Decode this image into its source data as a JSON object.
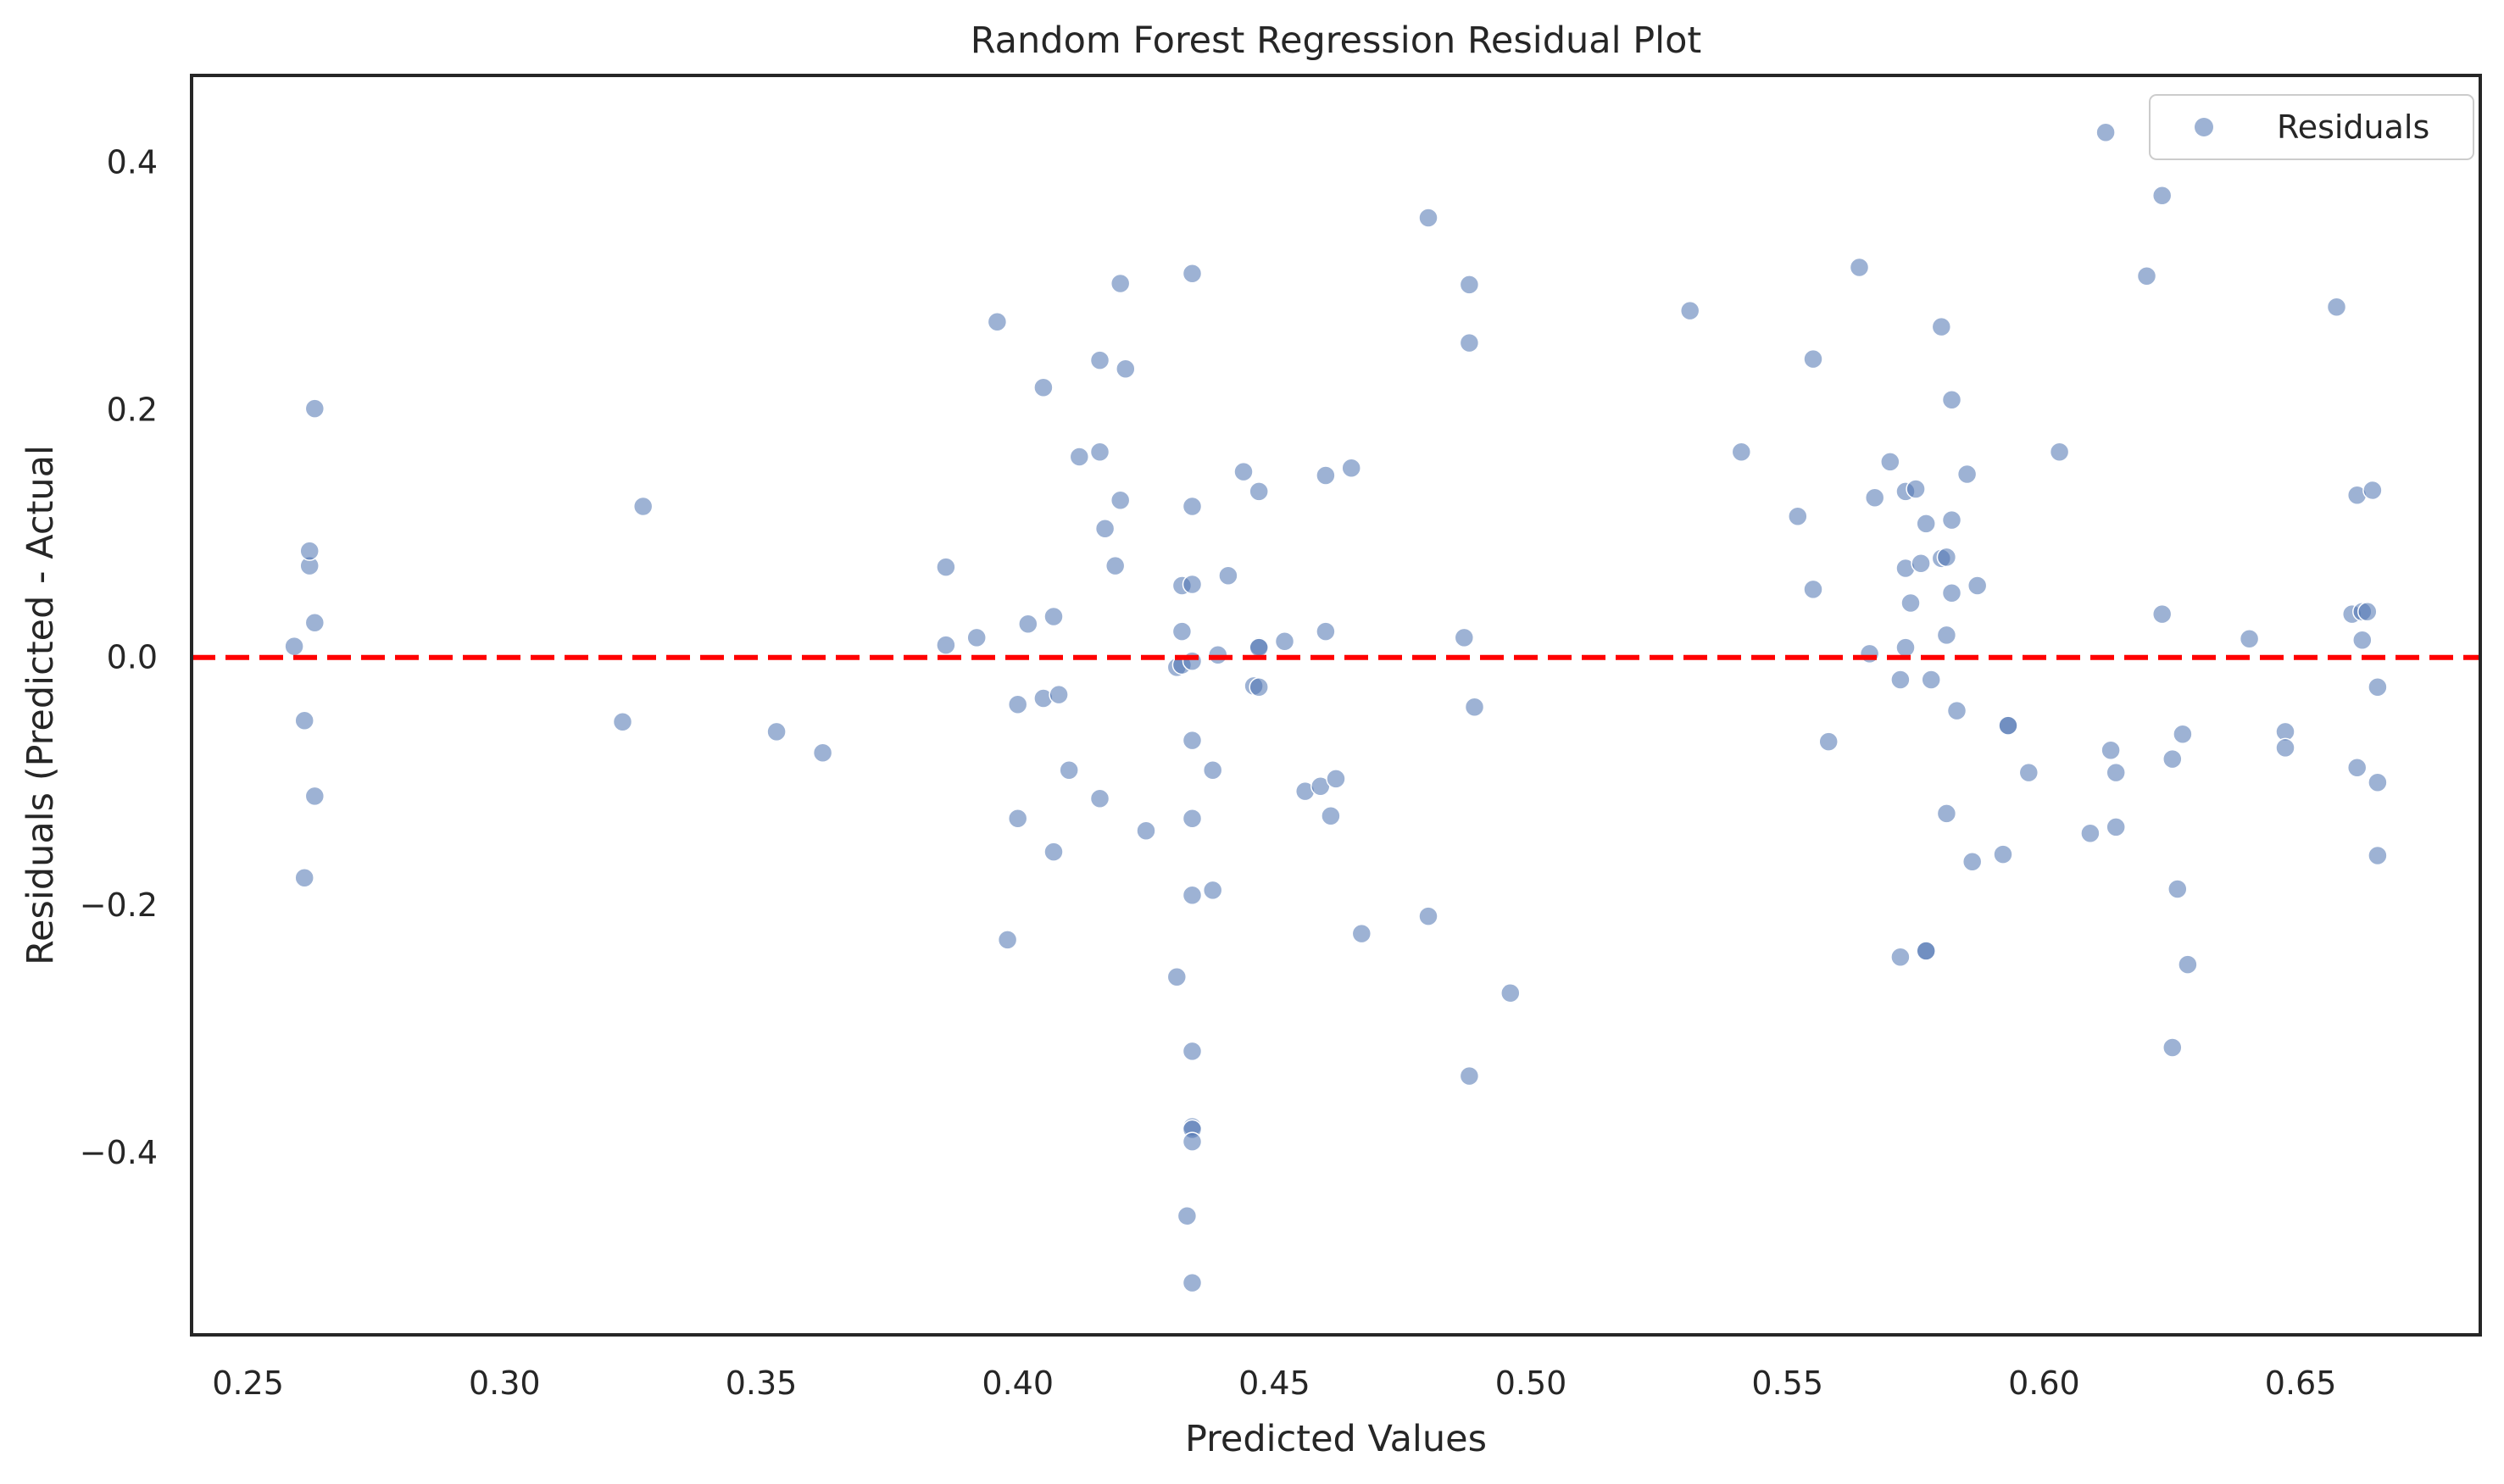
{
  "chart_data": {
    "type": "scatter",
    "title": "Random Forest Regression Residual Plot",
    "xlabel": "Predicted Values",
    "ylabel": "Residuals (Predicted - Actual",
    "xlim": [
      0.239,
      0.685
    ],
    "ylim": [
      -0.547,
      0.47
    ],
    "grid": false,
    "legend_position": "top-right",
    "reference_line": {
      "y": 0.0,
      "color": "#ff0000",
      "style": "dashed"
    },
    "point_color": "#4c72b0",
    "x_ticks": [
      {
        "value": 0.25,
        "label": "0.25"
      },
      {
        "value": 0.3,
        "label": "0.30"
      },
      {
        "value": 0.35,
        "label": "0.35"
      },
      {
        "value": 0.4,
        "label": "0.40"
      },
      {
        "value": 0.45,
        "label": "0.45"
      },
      {
        "value": 0.5,
        "label": "0.50"
      },
      {
        "value": 0.55,
        "label": "0.55"
      },
      {
        "value": 0.6,
        "label": "0.60"
      },
      {
        "value": 0.65,
        "label": "0.65"
      }
    ],
    "y_ticks": [
      {
        "value": 0.4,
        "label": "0.4"
      },
      {
        "value": 0.2,
        "label": "0.2"
      },
      {
        "value": 0.0,
        "label": "0.0"
      },
      {
        "value": -0.2,
        "label": "−0.2"
      },
      {
        "value": -0.4,
        "label": "−0.4"
      }
    ],
    "series": [
      {
        "name": "Residuals",
        "points": [
          [
            0.259,
            0.009
          ],
          [
            0.261,
            -0.051
          ],
          [
            0.262,
            0.074
          ],
          [
            0.262,
            0.086
          ],
          [
            0.263,
            0.201
          ],
          [
            0.263,
            0.028
          ],
          [
            0.263,
            -0.112
          ],
          [
            0.261,
            -0.178
          ],
          [
            0.323,
            -0.052
          ],
          [
            0.327,
            0.122
          ],
          [
            0.353,
            -0.06
          ],
          [
            0.362,
            -0.077
          ],
          [
            0.386,
            0.073
          ],
          [
            0.386,
            0.01
          ],
          [
            0.392,
            0.016
          ],
          [
            0.396,
            0.271
          ],
          [
            0.398,
            -0.228
          ],
          [
            0.4,
            -0.038
          ],
          [
            0.4,
            -0.13
          ],
          [
            0.402,
            0.027
          ],
          [
            0.405,
            0.218
          ],
          [
            0.405,
            -0.033
          ],
          [
            0.407,
            0.033
          ],
          [
            0.407,
            -0.157
          ],
          [
            0.408,
            -0.03
          ],
          [
            0.41,
            -0.091
          ],
          [
            0.412,
            0.162
          ],
          [
            0.416,
            0.24
          ],
          [
            0.416,
            0.166
          ],
          [
            0.417,
            0.104
          ],
          [
            0.416,
            -0.114
          ],
          [
            0.419,
            0.074
          ],
          [
            0.42,
            0.302
          ],
          [
            0.42,
            0.127
          ],
          [
            0.421,
            0.233
          ],
          [
            0.425,
            -0.14
          ],
          [
            0.431,
            -0.008
          ],
          [
            0.431,
            -0.258
          ],
          [
            0.432,
            -0.006
          ],
          [
            0.432,
            0.058
          ],
          [
            0.432,
            0.021
          ],
          [
            0.433,
            -0.451
          ],
          [
            0.434,
            0.31
          ],
          [
            0.434,
            0.122
          ],
          [
            0.434,
            0.059
          ],
          [
            0.434,
            -0.003
          ],
          [
            0.434,
            -0.067
          ],
          [
            0.434,
            -0.13
          ],
          [
            0.434,
            -0.192
          ],
          [
            0.434,
            -0.318
          ],
          [
            0.434,
            -0.379
          ],
          [
            0.434,
            -0.381
          ],
          [
            0.434,
            -0.391
          ],
          [
            0.434,
            -0.505
          ],
          [
            0.438,
            -0.188
          ],
          [
            0.438,
            -0.091
          ],
          [
            0.439,
            0.002
          ],
          [
            0.441,
            0.066
          ],
          [
            0.444,
            0.15
          ],
          [
            0.446,
            -0.023
          ],
          [
            0.447,
            -0.024
          ],
          [
            0.447,
            0.134
          ],
          [
            0.447,
            0.009
          ],
          [
            0.447,
            0.008
          ],
          [
            0.452,
            0.013
          ],
          [
            0.456,
            -0.108
          ],
          [
            0.459,
            -0.104
          ],
          [
            0.46,
            0.147
          ],
          [
            0.46,
            0.021
          ],
          [
            0.461,
            -0.128
          ],
          [
            0.462,
            -0.098
          ],
          [
            0.465,
            0.153
          ],
          [
            0.467,
            -0.223
          ],
          [
            0.48,
            -0.209
          ],
          [
            0.48,
            0.355
          ],
          [
            0.487,
            0.016
          ],
          [
            0.488,
            0.254
          ],
          [
            0.488,
            -0.338
          ],
          [
            0.488,
            0.301
          ],
          [
            0.489,
            -0.04
          ],
          [
            0.496,
            -0.271
          ],
          [
            0.531,
            0.28
          ],
          [
            0.541,
            0.166
          ],
          [
            0.552,
            0.114
          ],
          [
            0.555,
            0.241
          ],
          [
            0.555,
            0.055
          ],
          [
            0.558,
            -0.068
          ],
          [
            0.564,
            0.315
          ],
          [
            0.566,
            0.003
          ],
          [
            0.567,
            0.129
          ],
          [
            0.57,
            0.158
          ],
          [
            0.572,
            -0.018
          ],
          [
            0.572,
            -0.242
          ],
          [
            0.573,
            0.134
          ],
          [
            0.573,
            0.072
          ],
          [
            0.573,
            0.008
          ],
          [
            0.574,
            0.044
          ],
          [
            0.575,
            0.136
          ],
          [
            0.576,
            0.076
          ],
          [
            0.577,
            0.108
          ],
          [
            0.577,
            -0.237
          ],
          [
            0.577,
            -0.237
          ],
          [
            0.578,
            -0.018
          ],
          [
            0.58,
            0.08
          ],
          [
            0.58,
            0.267
          ],
          [
            0.581,
            0.081
          ],
          [
            0.581,
            0.018
          ],
          [
            0.581,
            -0.126
          ],
          [
            0.582,
            0.052
          ],
          [
            0.582,
            0.111
          ],
          [
            0.582,
            0.208
          ],
          [
            0.583,
            -0.043
          ],
          [
            0.585,
            0.148
          ],
          [
            0.586,
            -0.165
          ],
          [
            0.587,
            0.058
          ],
          [
            0.592,
            -0.159
          ],
          [
            0.593,
            -0.055
          ],
          [
            0.593,
            -0.055
          ],
          [
            0.597,
            -0.093
          ],
          [
            0.603,
            0.166
          ],
          [
            0.609,
            -0.142
          ],
          [
            0.612,
            0.424
          ],
          [
            0.613,
            -0.075
          ],
          [
            0.614,
            -0.093
          ],
          [
            0.614,
            -0.137
          ],
          [
            0.62,
            0.308
          ],
          [
            0.623,
            0.035
          ],
          [
            0.623,
            0.373
          ],
          [
            0.625,
            -0.082
          ],
          [
            0.625,
            -0.315
          ],
          [
            0.626,
            -0.187
          ],
          [
            0.627,
            -0.062
          ],
          [
            0.628,
            -0.248
          ],
          [
            0.64,
            0.015
          ],
          [
            0.647,
            -0.06
          ],
          [
            0.647,
            -0.073
          ],
          [
            0.657,
            0.283
          ],
          [
            0.66,
            0.035
          ],
          [
            0.661,
            0.131
          ],
          [
            0.661,
            -0.089
          ],
          [
            0.662,
            0.014
          ],
          [
            0.662,
            0.037
          ],
          [
            0.663,
            0.037
          ],
          [
            0.664,
            0.135
          ],
          [
            0.665,
            -0.024
          ],
          [
            0.665,
            -0.101
          ],
          [
            0.665,
            -0.16
          ]
        ]
      }
    ]
  }
}
